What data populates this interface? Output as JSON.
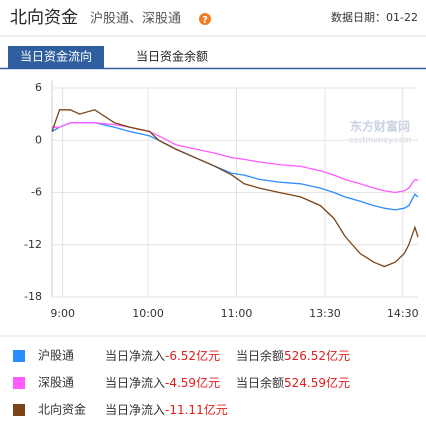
{
  "header": {
    "title": "北向资金",
    "subtitle": "沪股通、深股通",
    "help": "?",
    "date": "数据日期：01-22"
  },
  "tabs": [
    "当日资金流向",
    "当日资金余额"
  ],
  "watermark": {
    "name": "东方财富网",
    "site": "eastmoney.com"
  },
  "chart_data": {
    "type": "line",
    "x": [
      0,
      5,
      12,
      18,
      28,
      41,
      51,
      64,
      70,
      81,
      94,
      107,
      118,
      126,
      136,
      149,
      163,
      176,
      185,
      192,
      202,
      211,
      218,
      225,
      231,
      234,
      238,
      240
    ],
    "xlim": [
      0,
      240
    ],
    "xticks": [
      {
        "value": 7,
        "label": "9:00"
      },
      {
        "value": 63,
        "label": "10:00"
      },
      {
        "value": 121,
        "label": "11:00"
      },
      {
        "value": 179,
        "label": "13:30"
      },
      {
        "value": 230,
        "label": "14:30"
      }
    ],
    "ylim": [
      -18,
      6
    ],
    "yticks": [
      6,
      0,
      -6,
      -12,
      -18
    ],
    "grid": true,
    "series": [
      {
        "name": "沪股通",
        "color": "#2b8cff",
        "values": [
          1,
          1.5,
          2,
          2,
          2,
          1.5,
          1,
          0.5,
          0,
          -1,
          -2,
          -3,
          -3.8,
          -4,
          -4.5,
          -4.8,
          -5,
          -5.5,
          -6,
          -6.5,
          -7,
          -7.5,
          -7.8,
          -8,
          -7.8,
          -7.5,
          -6.2,
          -6.52
        ]
      },
      {
        "name": "深股通",
        "color": "#ff5cff",
        "values": [
          1.5,
          1.5,
          2,
          2,
          2,
          1.8,
          1.5,
          1,
          0.5,
          -0.5,
          -1,
          -1.5,
          -2,
          -2.2,
          -2.5,
          -2.8,
          -3,
          -3.5,
          -4,
          -4.5,
          -5,
          -5.5,
          -5.8,
          -6,
          -5.8,
          -5.5,
          -4.5,
          -4.59
        ]
      },
      {
        "name": "北向资金",
        "color": "#7a4517",
        "values": [
          1,
          3.5,
          3.5,
          3,
          3.5,
          2,
          1.5,
          1,
          0,
          -1,
          -2,
          -3,
          -4,
          -5,
          -5.5,
          -6,
          -6.5,
          -7.5,
          -9,
          -11,
          -13,
          -14,
          -14.5,
          -14,
          -13,
          -12,
          -10,
          -11.11
        ]
      }
    ]
  },
  "legend": {
    "net_label": "当日净流入",
    "balance_label": "当日余额",
    "unit": "亿元",
    "rows": [
      {
        "net": -6.52,
        "balance": 526.52
      },
      {
        "net": -4.59,
        "balance": 524.59
      },
      {
        "net": -11.11
      }
    ]
  }
}
